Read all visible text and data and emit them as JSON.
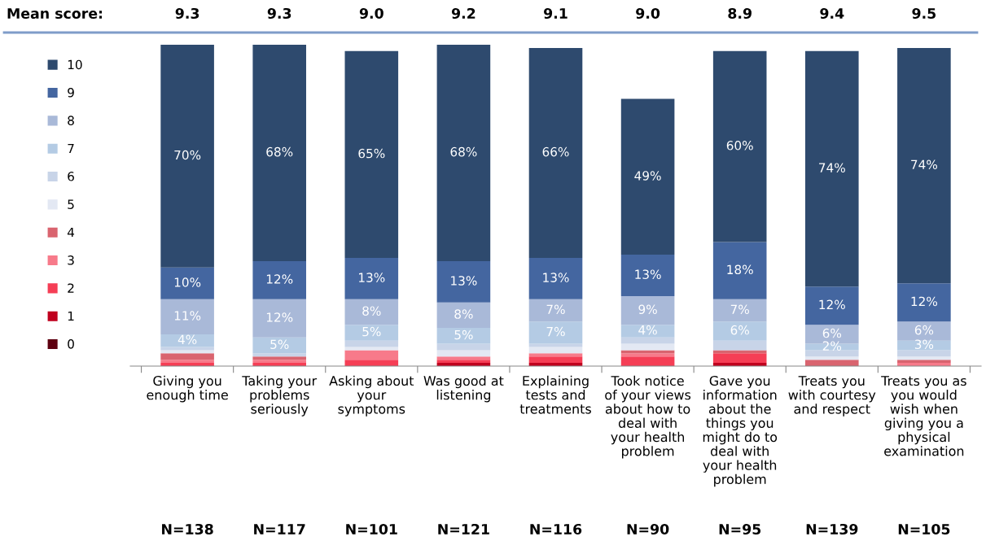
{
  "chart_data": {
    "type": "bar",
    "stacked": true,
    "legend": "left",
    "grid": false,
    "categories": [
      "Giving you\nenough time",
      "Taking your\nproblems\nseriously",
      "Asking about\nyour\nsymptoms",
      "Was good at\nlistening",
      "Explaining\ntests and\ntreatments",
      "Took notice\nof your views\nabout how to\ndeal with\nyour health\nproblem",
      "Gave you\ninformation\nabout the\nthings you\nmight do to\ndeal with\nyour health\nproblem",
      "Treats you\nwith courtesy\nand respect",
      "Treats you as\nyou would\nwish when\ngiving you a\nphysical\nexamination"
    ],
    "series": [
      {
        "name": "0",
        "color": "#5e0010",
        "values": [
          0,
          0,
          0,
          0,
          0,
          0,
          0,
          0,
          0
        ],
        "value_labels": [
          null,
          null,
          null,
          null,
          null,
          null,
          null,
          null,
          null
        ]
      },
      {
        "name": "1",
        "color": "#c0001e",
        "values": [
          0,
          0,
          0,
          1,
          1,
          0,
          1,
          0,
          0
        ],
        "value_labels": [
          null,
          null,
          null,
          null,
          null,
          null,
          null,
          null,
          null
        ]
      },
      {
        "name": "2",
        "color": "#f53e55",
        "values": [
          1,
          1,
          2,
          1,
          2,
          3,
          3,
          0,
          0
        ],
        "value_labels": [
          null,
          null,
          null,
          null,
          null,
          null,
          null,
          null,
          null
        ]
      },
      {
        "name": "3",
        "color": "#f77a8a",
        "values": [
          1,
          1,
          3,
          1,
          1,
          1,
          0,
          0,
          1
        ],
        "value_labels": [
          null,
          null,
          null,
          null,
          null,
          null,
          null,
          null,
          null
        ]
      },
      {
        "name": "4",
        "color": "#d9646f",
        "values": [
          2,
          1,
          0,
          0,
          0,
          1,
          1,
          2,
          1
        ],
        "value_labels": [
          null,
          null,
          null,
          null,
          null,
          null,
          null,
          null,
          null
        ]
      },
      {
        "name": "5",
        "color": "#e3e8f3",
        "values": [
          1,
          0,
          1,
          2,
          2,
          2,
          0,
          1,
          1
        ],
        "value_labels": [
          null,
          null,
          null,
          null,
          null,
          null,
          null,
          null,
          null
        ]
      },
      {
        "name": "6",
        "color": "#c8d4e8",
        "values": [
          1,
          1,
          2,
          2,
          1,
          2,
          3,
          2,
          2
        ],
        "value_labels": [
          null,
          null,
          null,
          null,
          null,
          null,
          null,
          null,
          null
        ]
      },
      {
        "name": "7",
        "color": "#b4cbe4",
        "values": [
          4,
          5,
          5,
          5,
          7,
          4,
          6,
          2,
          3
        ],
        "value_labels": [
          "4%",
          "5%",
          "5%",
          "5%",
          "7%",
          "4%",
          "6%",
          "2%",
          "3%"
        ]
      },
      {
        "name": "8",
        "color": "#a9b9d8",
        "values": [
          11,
          12,
          8,
          8,
          7,
          9,
          7,
          6,
          6
        ],
        "value_labels": [
          "11%",
          "12%",
          "8%",
          "8%",
          "7%",
          "9%",
          "7%",
          "6%",
          "6%"
        ]
      },
      {
        "name": "9",
        "color": "#4466a0",
        "values": [
          10,
          12,
          13,
          13,
          13,
          13,
          18,
          12,
          12
        ],
        "value_labels": [
          "10%",
          "12%",
          "13%",
          "13%",
          "13%",
          "13%",
          "18%",
          "12%",
          "12%"
        ]
      },
      {
        "name": "10",
        "color": "#2e4a6e",
        "values": [
          70,
          68,
          65,
          68,
          66,
          49,
          60,
          74,
          74
        ],
        "value_labels": [
          "70%",
          "68%",
          "65%",
          "68%",
          "66%",
          "49%",
          "60%",
          "74%",
          "74%"
        ]
      }
    ],
    "annotations": [
      "Mean score:",
      "9.3",
      "9.3",
      "9.0",
      "9.2",
      "9.1",
      "9.0",
      "8.9",
      "9.4",
      "9.5",
      "N=138",
      "N=117",
      "N=101",
      "N=121",
      "N=116",
      "N=90",
      "N=95",
      "N=139",
      "N=105"
    ]
  }
}
